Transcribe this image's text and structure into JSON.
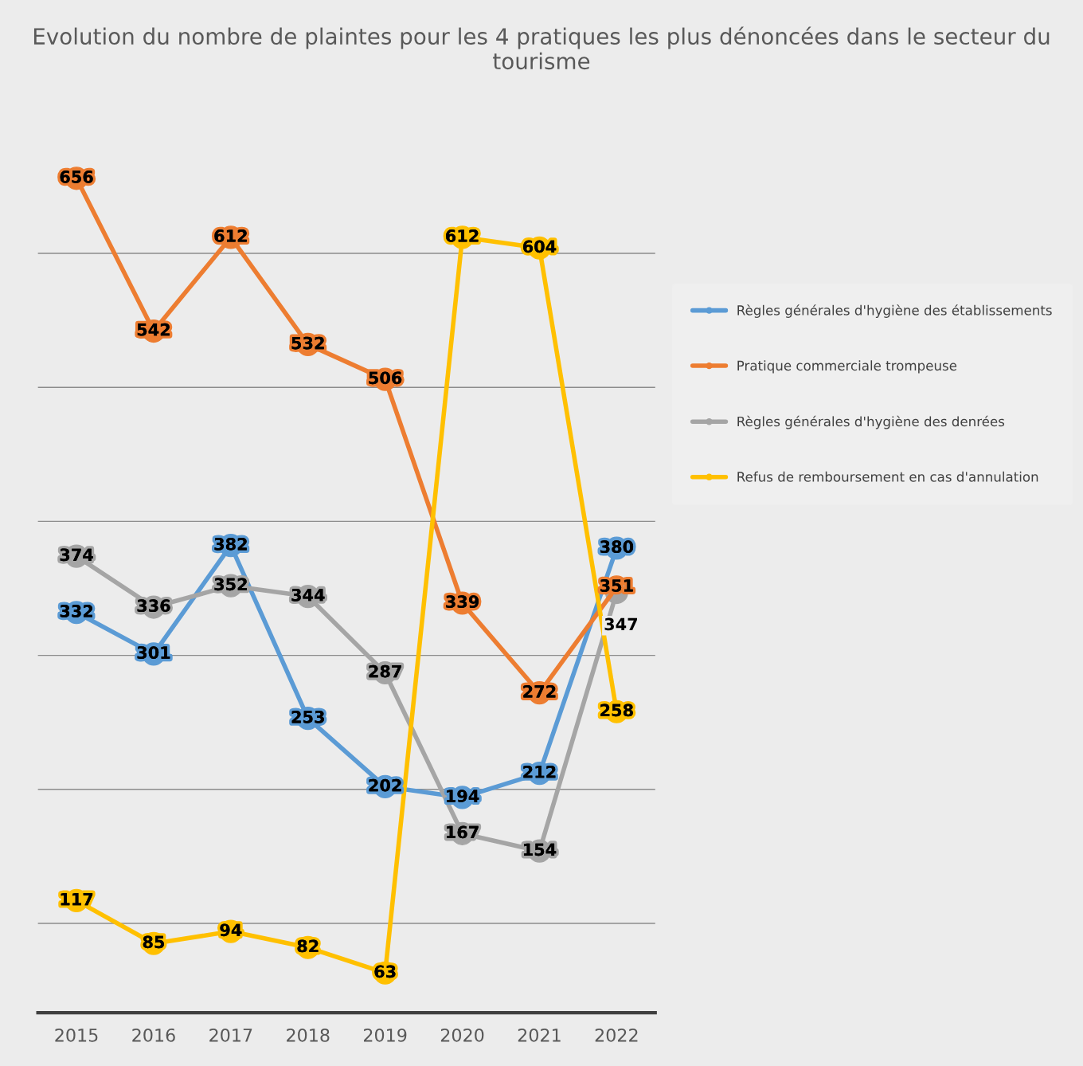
{
  "chart_data": {
    "type": "line",
    "title": "Evolution du nombre de plaintes pour les 4 pratiques les plus dénoncées dans le secteur du tourisme",
    "categories": [
      "2015",
      "2016",
      "2017",
      "2018",
      "2019",
      "2020",
      "2021",
      "2022"
    ],
    "series": [
      {
        "name": "Règles générales d'hygiène des établissements",
        "color": "#5b9bd5",
        "values": [
          332,
          301,
          382,
          253,
          202,
          194,
          212,
          380
        ]
      },
      {
        "name": "Pratique commerciale trompeuse",
        "color": "#ed7d31",
        "values": [
          656,
          542,
          612,
          532,
          506,
          339,
          272,
          351
        ]
      },
      {
        "name": "Règles générales d'hygiène des denrées",
        "color": "#a5a5a5",
        "values": [
          374,
          336,
          352,
          344,
          287,
          167,
          154,
          347
        ]
      },
      {
        "name": "Refus de remboursement en cas d'annulation",
        "color": "#ffc000",
        "values": [
          117,
          85,
          94,
          82,
          63,
          612,
          604,
          258
        ]
      }
    ],
    "tick_labels": "x",
    "grid": "y",
    "legend": "right",
    "marker": "circle",
    "line_style": "solid",
    "data_labels": true
  }
}
